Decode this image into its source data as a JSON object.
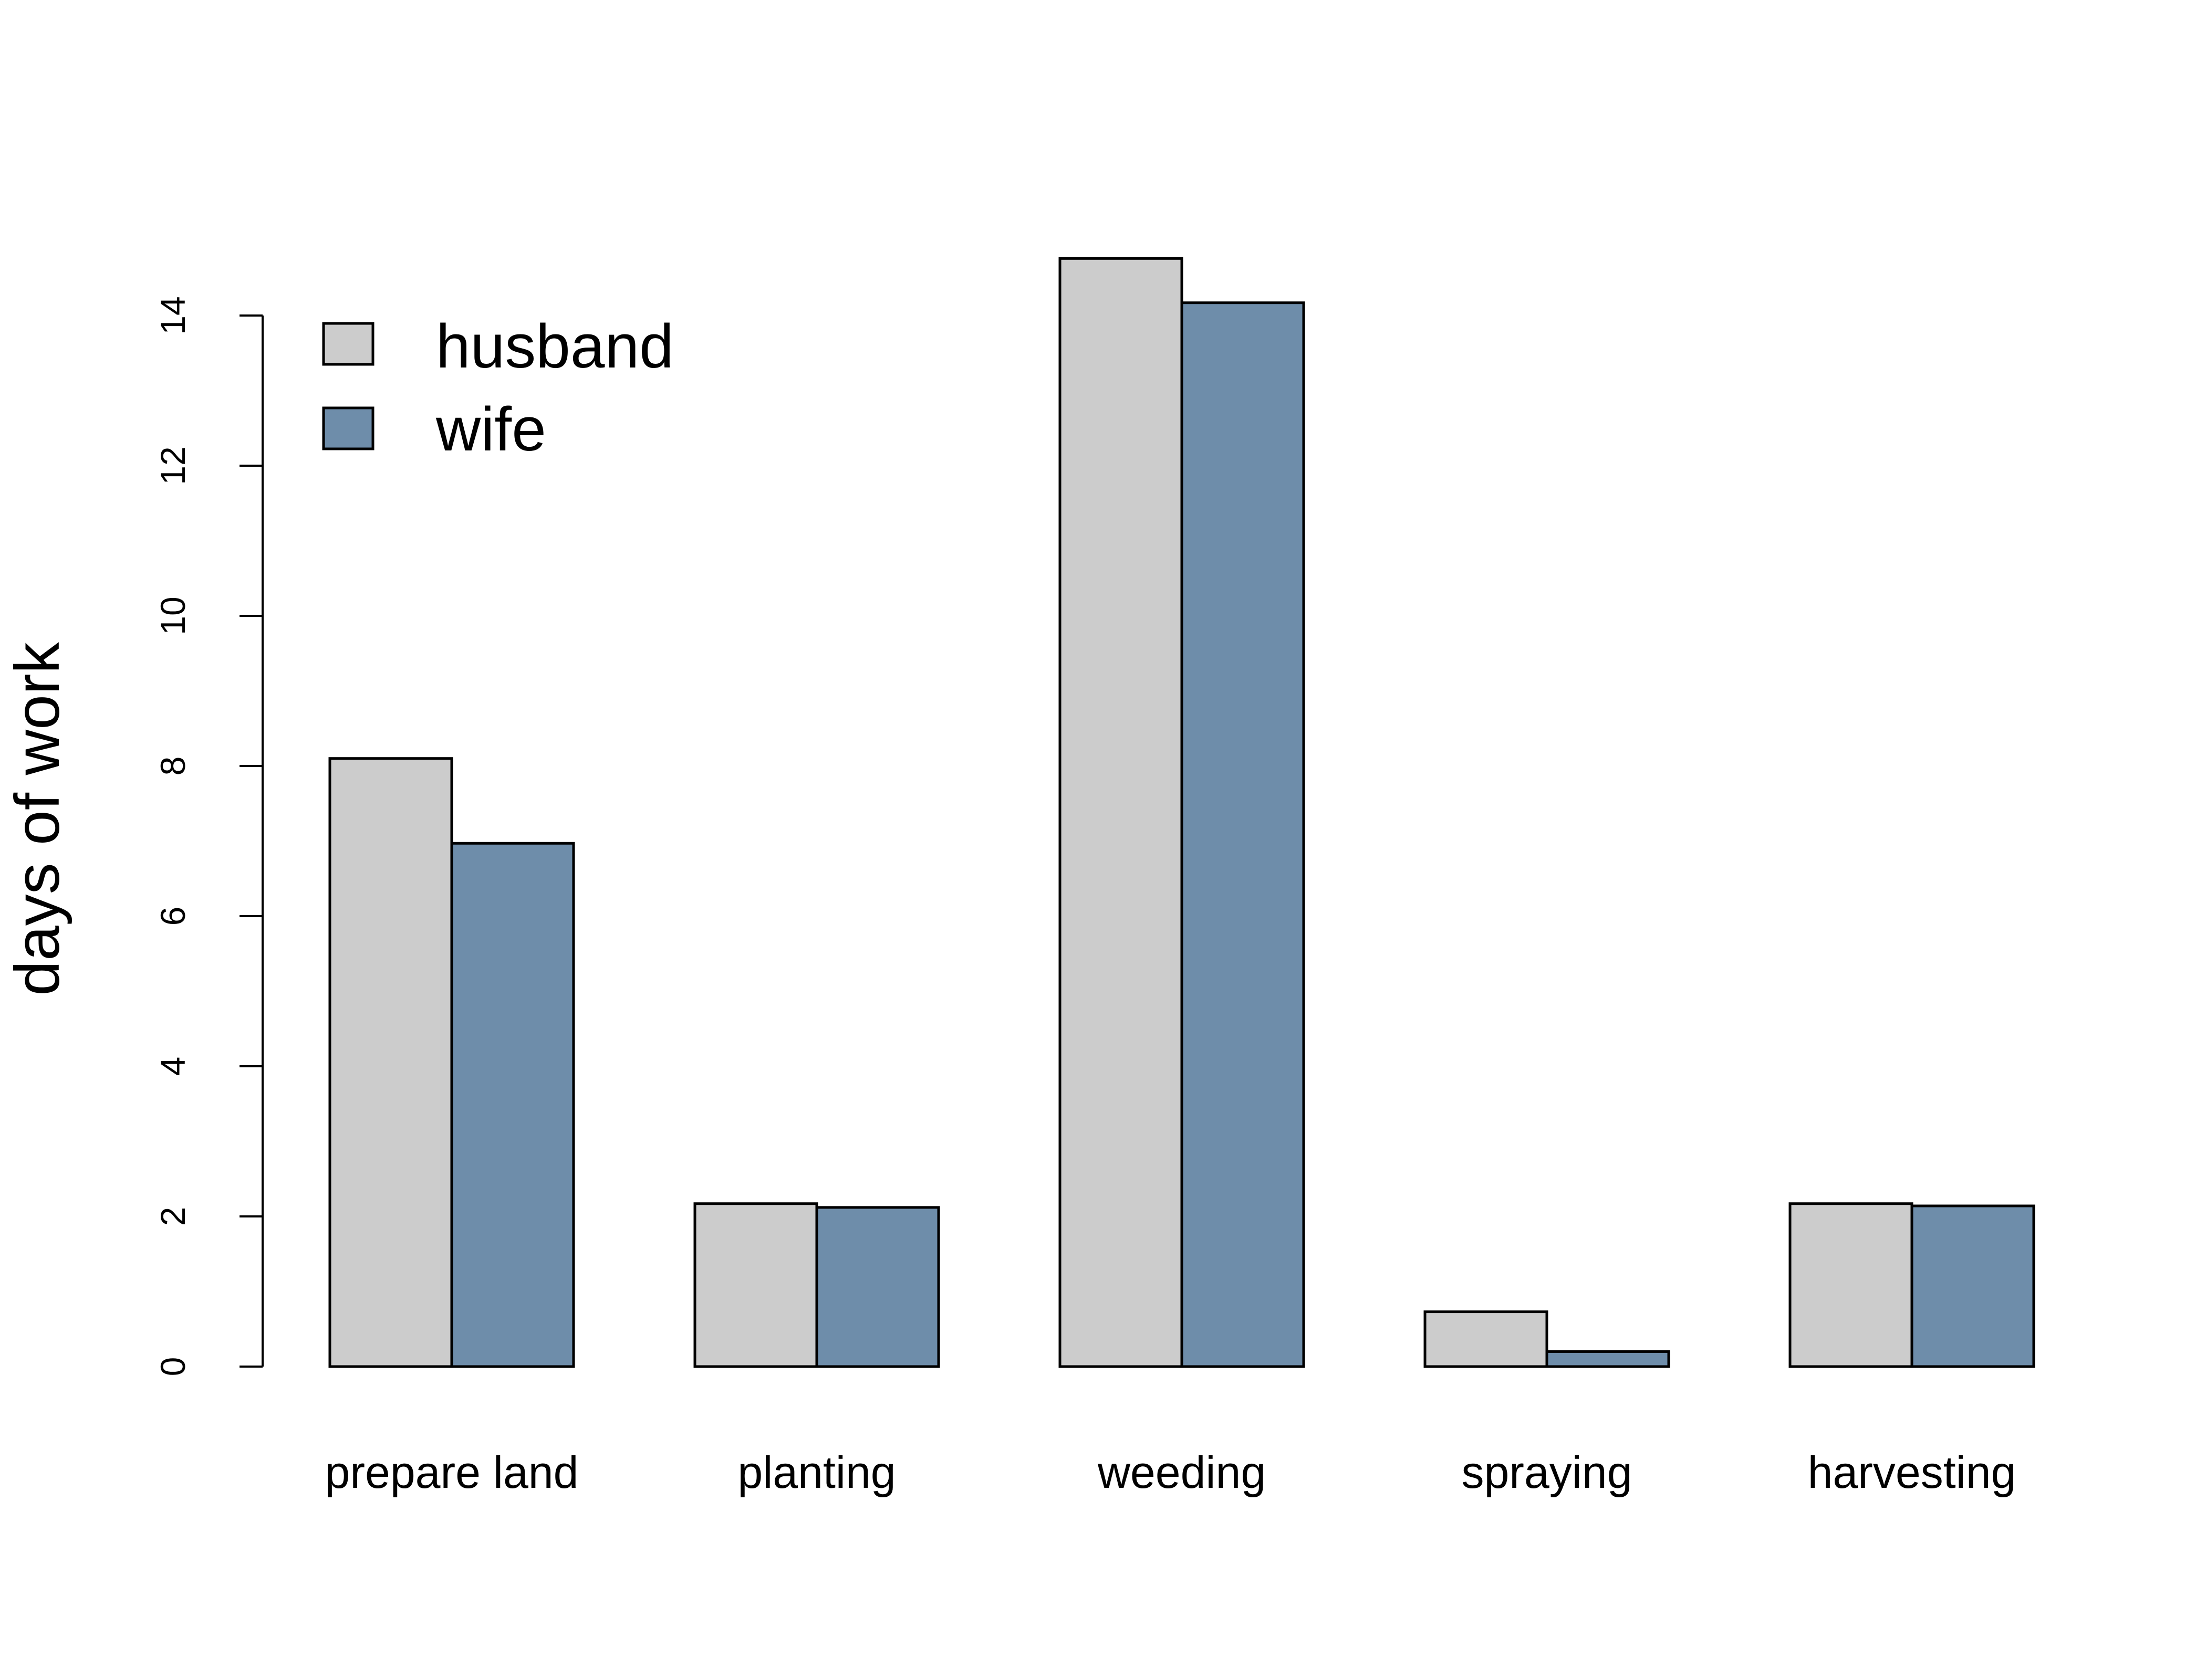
{
  "chart_data": {
    "type": "bar",
    "title": "",
    "xlabel": "",
    "ylabel": "days of work",
    "ylim": [
      0,
      14
    ],
    "yticks": [
      "0",
      "2",
      "4",
      "6",
      "8",
      "10",
      "12",
      "14"
    ],
    "categories": [
      "prepare land",
      "planting",
      "weeding",
      "spraying",
      "harvesting"
    ],
    "series": [
      {
        "name": "husband",
        "color": "#cccccc",
        "values": [
          8.1,
          2.17,
          14.76,
          0.73,
          2.17
        ]
      },
      {
        "name": "wife",
        "color": "#6e8daa",
        "values": [
          6.97,
          2.12,
          14.17,
          0.2,
          2.14
        ]
      }
    ],
    "grid": false,
    "legend": "top-left"
  }
}
